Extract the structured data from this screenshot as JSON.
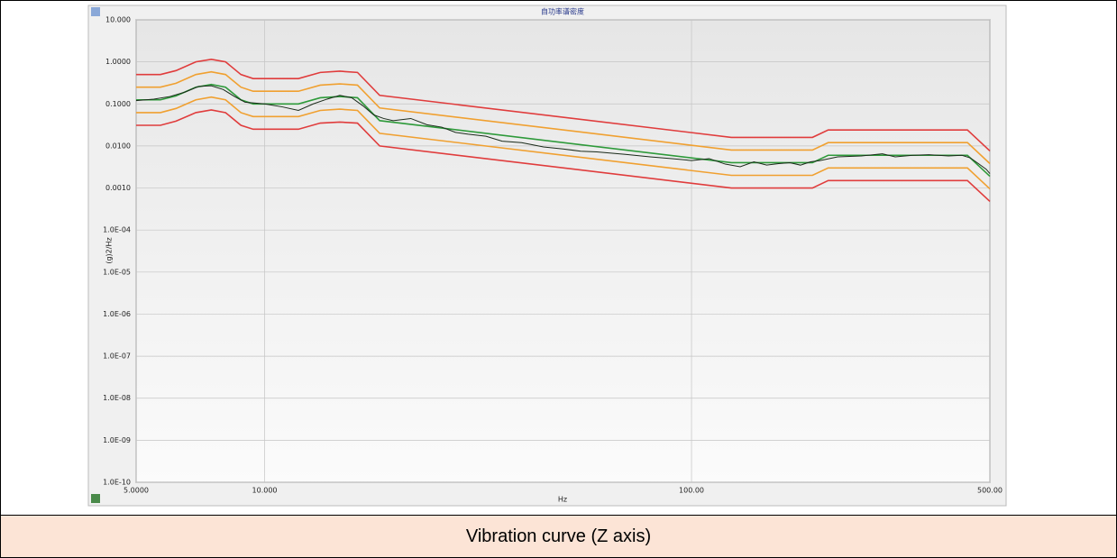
{
  "chart_data": {
    "type": "line",
    "title": "自功率谱密度",
    "x_label": "Hz",
    "y_label": "(g)2/Hz",
    "xscale": "log",
    "yscale": "log",
    "grid": true,
    "xlim": [
      5,
      500
    ],
    "ylim": [
      1e-10,
      10
    ],
    "xticks": [
      {
        "value": 5,
        "label": "5.0000"
      },
      {
        "value": 10,
        "label": "10.000"
      },
      {
        "value": 100,
        "label": "100.00"
      },
      {
        "value": 500,
        "label": "500.00"
      }
    ],
    "yticks": [
      {
        "value": 10,
        "label": "10.000"
      },
      {
        "value": 1,
        "label": "1.0000"
      },
      {
        "value": 0.1,
        "label": "0.1000"
      },
      {
        "value": 0.01,
        "label": "0.0100"
      },
      {
        "value": 0.001,
        "label": "0.0010"
      },
      {
        "value": 0.0001,
        "label": "1.0E-04"
      },
      {
        "value": 1e-05,
        "label": "1.0E-05"
      },
      {
        "value": 1e-06,
        "label": "1.0E-06"
      },
      {
        "value": 1e-07,
        "label": "1.0E-07"
      },
      {
        "value": 1e-08,
        "label": "1.0E-08"
      },
      {
        "value": 1e-09,
        "label": "1.0E-09"
      },
      {
        "value": 1e-10,
        "label": "1.0E-10"
      }
    ],
    "series": [
      {
        "color": "#e03c3c",
        "x": [
          5,
          5.7,
          6.2,
          6.9,
          7.5,
          8.1,
          8.8,
          9.4,
          12,
          13.5,
          15,
          16.5,
          18.6,
          124,
          192,
          209,
          443,
          500
        ],
        "values": [
          0.5,
          0.5,
          0.62,
          1.0,
          1.15,
          1.0,
          0.5,
          0.4,
          0.4,
          0.56,
          0.6,
          0.56,
          0.16,
          0.016,
          0.016,
          0.024,
          0.024,
          0.0076
        ]
      },
      {
        "color": "#f0a030",
        "x": [
          5,
          5.7,
          6.2,
          6.9,
          7.5,
          8.1,
          8.8,
          9.4,
          12,
          13.5,
          15,
          16.5,
          18.6,
          124,
          192,
          209,
          443,
          500
        ],
        "values": [
          0.25,
          0.25,
          0.31,
          0.5,
          0.58,
          0.5,
          0.25,
          0.2,
          0.2,
          0.28,
          0.3,
          0.28,
          0.08,
          0.008,
          0.008,
          0.012,
          0.012,
          0.0038
        ]
      },
      {
        "color": "#2e9a3a",
        "x": [
          5,
          5.7,
          6.2,
          6.9,
          7.5,
          8.1,
          8.8,
          9.4,
          12,
          13.5,
          15,
          16.5,
          18.6,
          124,
          192,
          209,
          443,
          500
        ],
        "values": [
          0.125,
          0.125,
          0.155,
          0.25,
          0.29,
          0.25,
          0.125,
          0.1,
          0.1,
          0.14,
          0.15,
          0.14,
          0.04,
          0.004,
          0.004,
          0.006,
          0.006,
          0.0019
        ]
      },
      {
        "color": "#f0a030",
        "x": [
          5,
          5.7,
          6.2,
          6.9,
          7.5,
          8.1,
          8.8,
          9.4,
          12,
          13.5,
          15,
          16.5,
          18.6,
          124,
          192,
          209,
          443,
          500
        ],
        "values": [
          0.062,
          0.062,
          0.078,
          0.125,
          0.145,
          0.125,
          0.062,
          0.05,
          0.05,
          0.07,
          0.075,
          0.07,
          0.02,
          0.002,
          0.002,
          0.003,
          0.003,
          0.00095
        ]
      },
      {
        "color": "#e03c3c",
        "x": [
          5,
          5.7,
          6.2,
          6.9,
          7.5,
          8.1,
          8.8,
          9.4,
          12,
          13.5,
          15,
          16.5,
          18.6,
          124,
          192,
          209,
          443,
          500
        ],
        "values": [
          0.031,
          0.031,
          0.039,
          0.062,
          0.072,
          0.062,
          0.031,
          0.025,
          0.025,
          0.035,
          0.037,
          0.035,
          0.01,
          0.001,
          0.001,
          0.0015,
          0.0015,
          0.00048
        ]
      },
      {
        "color": "#1a2a1a",
        "x": [
          5,
          5.5,
          6,
          6.5,
          7,
          7.5,
          8,
          8.5,
          9,
          10,
          11,
          12,
          13,
          14,
          15,
          16,
          17,
          18,
          19,
          20,
          22,
          24,
          26,
          28,
          30,
          33,
          36,
          40,
          45,
          50,
          55,
          60,
          70,
          80,
          90,
          100,
          110,
          120,
          130,
          140,
          150,
          160,
          170,
          180,
          190,
          200,
          220,
          250,
          280,
          300,
          330,
          360,
          400,
          430,
          450,
          470,
          490,
          500
        ],
        "values": [
          0.12,
          0.13,
          0.15,
          0.19,
          0.26,
          0.27,
          0.22,
          0.15,
          0.11,
          0.1,
          0.085,
          0.07,
          0.1,
          0.13,
          0.16,
          0.14,
          0.09,
          0.055,
          0.045,
          0.04,
          0.045,
          0.032,
          0.028,
          0.021,
          0.019,
          0.017,
          0.013,
          0.012,
          0.0095,
          0.0085,
          0.0075,
          0.0072,
          0.0063,
          0.0055,
          0.005,
          0.0045,
          0.005,
          0.0037,
          0.0032,
          0.0042,
          0.0035,
          0.0038,
          0.004,
          0.0035,
          0.0042,
          0.0045,
          0.0055,
          0.0058,
          0.0065,
          0.0055,
          0.006,
          0.0062,
          0.0058,
          0.006,
          0.0052,
          0.0038,
          0.0028,
          0.0022
        ]
      }
    ]
  },
  "caption": "Vibration curve (Z axis)"
}
